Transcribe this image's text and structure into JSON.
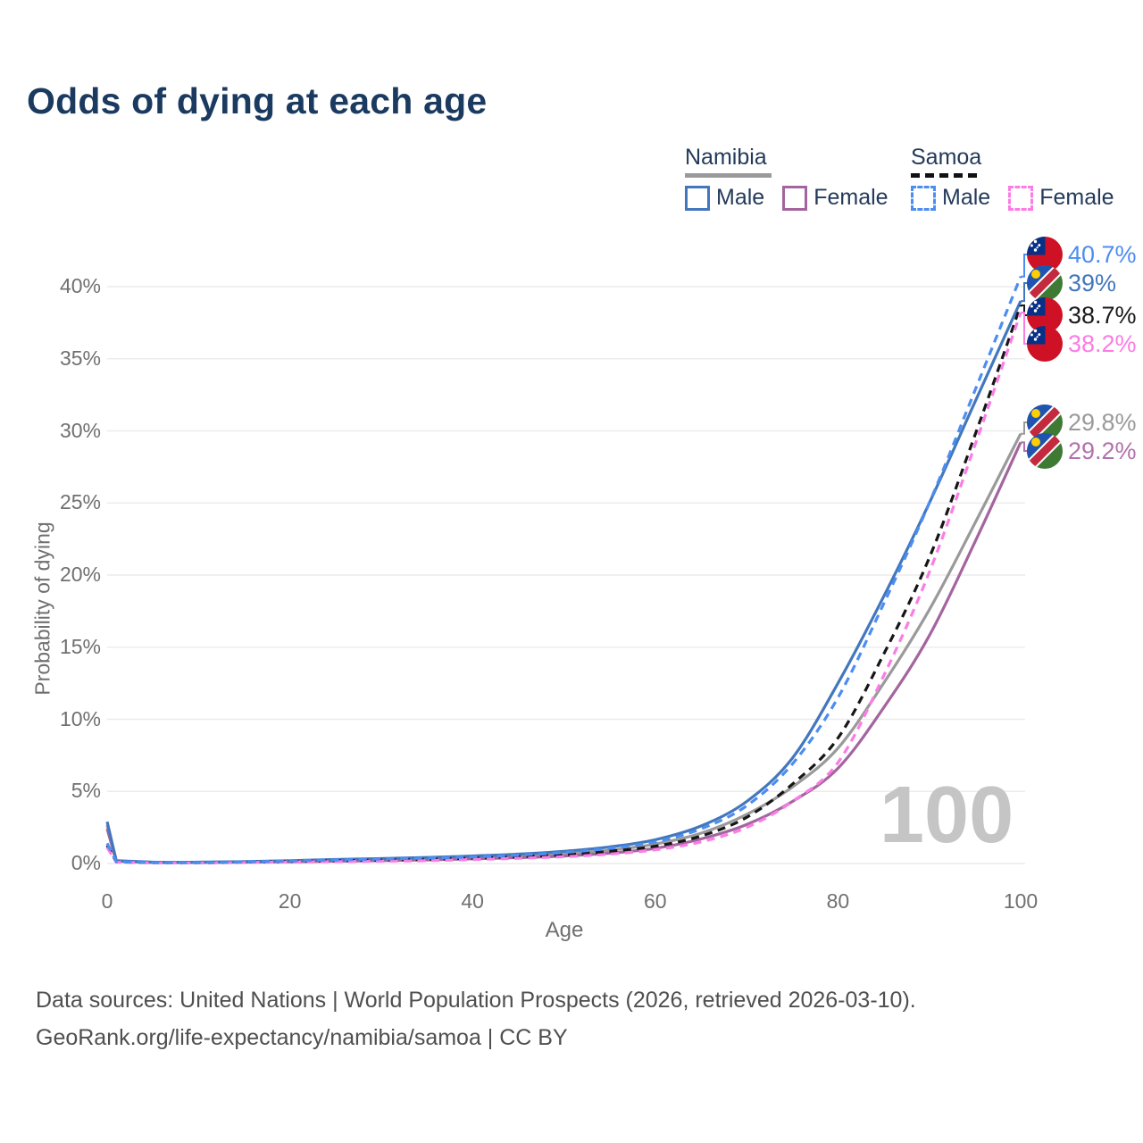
{
  "title": "Odds of dying at each age",
  "legend": {
    "groups": [
      {
        "name": "Namibia",
        "line_style": "solid",
        "underline_color": "#9a9a9a",
        "items": [
          {
            "label": "Male",
            "color": "#4377bd"
          },
          {
            "label": "Female",
            "color": "#a4659e"
          }
        ]
      },
      {
        "name": "Samoa",
        "line_style": "dashed",
        "underline_color": "#111111",
        "items": [
          {
            "label": "Male",
            "color": "#4c8df2"
          },
          {
            "label": "Female",
            "color": "#fb7ce5"
          }
        ]
      }
    ]
  },
  "y_axis": {
    "title": "Probability of dying"
  },
  "x_axis": {
    "title": "Age"
  },
  "watermark": "100",
  "end_labels": [
    {
      "value": "40.7%",
      "series": "samoa_male",
      "flag": "samoa",
      "color": "#4c8df2"
    },
    {
      "value": "39%",
      "series": "namibia_male",
      "flag": "namibia",
      "color": "#4377bd"
    },
    {
      "value": "38.7%",
      "series": "samoa_both",
      "flag": "samoa",
      "color": "#1a1a1a"
    },
    {
      "value": "38.2%",
      "series": "samoa_female",
      "flag": "samoa",
      "color": "#fb7ce5"
    },
    {
      "value": "29.8%",
      "series": "namibia_both",
      "flag": "namibia",
      "color": "#9a9a9a"
    },
    {
      "value": "29.2%",
      "series": "namibia_female",
      "flag": "namibia",
      "color": "#b272ad"
    }
  ],
  "footer": {
    "line1": "Data sources: United Nations | World Population Prospects (2026, retrieved 2026-03-10).",
    "line2": "GeoRank.org/life-expectancy/namibia/samoa | CC BY"
  },
  "chart_data": {
    "type": "line",
    "title": "Odds of dying at each age",
    "xlabel": "Age",
    "ylabel": "Probability of dying",
    "xlim": [
      0,
      100
    ],
    "ylim": [
      0,
      42
    ],
    "grid": "horizontal",
    "legend_position": "top-right",
    "xticks": [
      0,
      20,
      40,
      60,
      80,
      100
    ],
    "yticks": [
      0,
      5,
      10,
      15,
      20,
      25,
      30,
      35,
      40
    ],
    "ytick_labels": [
      "0%",
      "5%",
      "10%",
      "15%",
      "20%",
      "25%",
      "30%",
      "35%",
      "40%"
    ],
    "x": [
      0,
      1,
      5,
      10,
      15,
      20,
      25,
      30,
      35,
      40,
      45,
      50,
      55,
      60,
      65,
      70,
      75,
      80,
      85,
      90,
      95,
      100
    ],
    "series": [
      {
        "key": "namibia_male",
        "name": "Namibia — Male",
        "color": "#4377bd",
        "dashed": false,
        "end_label": "39%",
        "values": [
          2.9,
          0.2,
          0.09,
          0.09,
          0.13,
          0.2,
          0.28,
          0.34,
          0.42,
          0.52,
          0.65,
          0.85,
          1.15,
          1.65,
          2.6,
          4.3,
          7.3,
          12.5,
          18.5,
          25.0,
          32.0,
          39.0
        ]
      },
      {
        "key": "namibia_female",
        "name": "Namibia — Female",
        "color": "#a4659e",
        "dashed": false,
        "end_label": "29.2%",
        "values": [
          2.4,
          0.17,
          0.07,
          0.07,
          0.09,
          0.12,
          0.16,
          0.2,
          0.25,
          0.32,
          0.41,
          0.52,
          0.72,
          1.05,
          1.7,
          2.7,
          4.3,
          6.6,
          10.8,
          15.8,
          22.3,
          29.2
        ]
      },
      {
        "key": "namibia_both",
        "name": "Namibia — Both sexes",
        "color": "#9a9a9a",
        "dashed": false,
        "end_label": "29.8%",
        "values": [
          2.65,
          0.18,
          0.08,
          0.08,
          0.11,
          0.16,
          0.22,
          0.27,
          0.33,
          0.42,
          0.52,
          0.67,
          0.92,
          1.35,
          2.1,
          3.4,
          5.3,
          8.0,
          12.5,
          17.6,
          23.6,
          29.8
        ]
      },
      {
        "key": "samoa_male",
        "name": "Samoa — Male",
        "color": "#4c8df2",
        "dashed": true,
        "end_label": "40.7%",
        "values": [
          1.4,
          0.13,
          0.06,
          0.06,
          0.11,
          0.18,
          0.25,
          0.31,
          0.38,
          0.46,
          0.58,
          0.76,
          1.05,
          1.5,
          2.4,
          4.0,
          6.9,
          11.5,
          18.0,
          25.0,
          32.8,
          40.7
        ]
      },
      {
        "key": "samoa_female",
        "name": "Samoa — Female",
        "color": "#fb7ce5",
        "dashed": true,
        "end_label": "38.2%",
        "values": [
          1.1,
          0.1,
          0.04,
          0.04,
          0.07,
          0.1,
          0.13,
          0.16,
          0.2,
          0.27,
          0.36,
          0.47,
          0.65,
          0.95,
          1.5,
          2.5,
          4.3,
          7.0,
          13.0,
          20.2,
          29.0,
          38.2
        ]
      },
      {
        "key": "samoa_both",
        "name": "Samoa — Both sexes",
        "color": "#161616",
        "dashed": true,
        "end_label": "38.7%",
        "values": [
          1.25,
          0.11,
          0.05,
          0.05,
          0.09,
          0.14,
          0.19,
          0.24,
          0.29,
          0.37,
          0.47,
          0.6,
          0.85,
          1.2,
          1.9,
          3.2,
          5.5,
          8.7,
          14.5,
          21.2,
          29.7,
          38.7
        ]
      }
    ]
  }
}
